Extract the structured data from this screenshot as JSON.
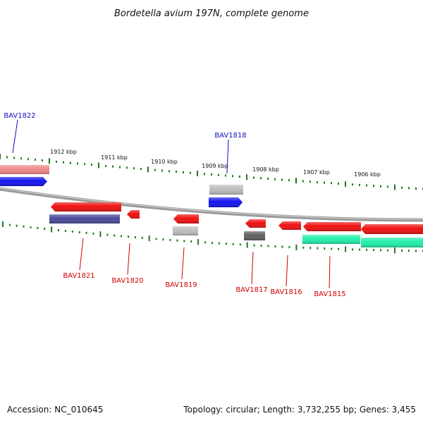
{
  "title": "Bordetella avium 197N, complete genome",
  "footer": {
    "accession": "Accession: NC_010645",
    "summary": "Topology: circular; Length: 3,732,255 bp; Genes: 3,455"
  },
  "colors": {
    "backbone": "#808080",
    "tick": "#1a7a1a",
    "label_forward": "#1010c0",
    "label_reverse": "#d00000",
    "red": "#ee1111",
    "blue": "#1414f0",
    "pink": "#ee8888",
    "gray": "#bdbdbd",
    "dark_gray": "#606060",
    "purple": "#4a4a9a",
    "cyan": "#22eeaa"
  },
  "scale_labels": [
    "1912 kbp",
    "1911 kbp",
    "1910 kbp",
    "1909 kbp",
    "1908 kbp",
    "1907 kbp",
    "1906 kbp"
  ],
  "gene_labels": [
    {
      "text": "BAV1822",
      "strand": "forward"
    },
    {
      "text": "BAV1818",
      "strand": "forward"
    },
    {
      "text": "BAV1821",
      "strand": "reverse"
    },
    {
      "text": "BAV1820",
      "strand": "reverse"
    },
    {
      "text": "BAV1819",
      "strand": "reverse"
    },
    {
      "text": "BAV1817",
      "strand": "reverse"
    },
    {
      "text": "BAV1816",
      "strand": "reverse"
    },
    {
      "text": "BAV1815",
      "strand": "reverse"
    }
  ]
}
